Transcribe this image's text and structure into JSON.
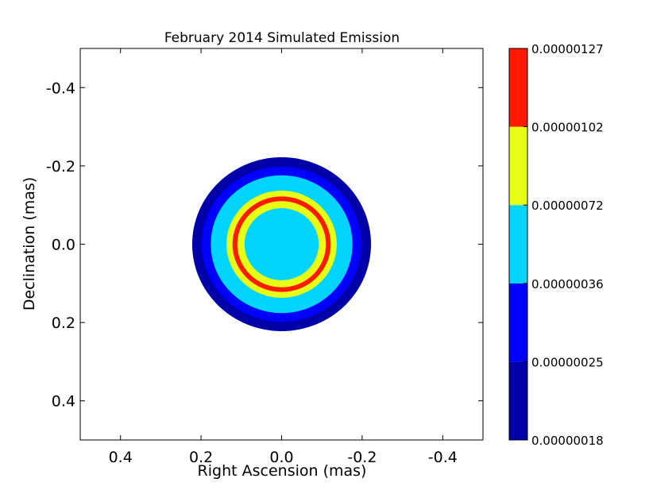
{
  "chart_data": {
    "type": "contour",
    "title": "February 2014 Simulated Emission",
    "xlabel": "Right Ascension (mas)",
    "ylabel": "Declination (mas)",
    "xlim": [
      0.5,
      -0.5
    ],
    "ylim": [
      0.5,
      -0.5
    ],
    "xticks": [
      0.4,
      0.2,
      0.0,
      -0.2,
      -0.4
    ],
    "xtick_labels": [
      "0.4",
      "0.2",
      "0.0",
      "-0.2",
      "-0.4"
    ],
    "yticks": [
      -0.4,
      -0.2,
      0.0,
      0.2,
      0.4
    ],
    "ytick_labels": [
      "-0.4",
      "-0.2",
      "0.0",
      "0.2",
      "0.4"
    ],
    "grid": false,
    "colorbar": {
      "levels": [
        1.8e-07,
        2.5e-07,
        3.6e-07,
        7.2e-07,
        1.02e-06,
        1.27e-06
      ],
      "labels": [
        "0.00000018",
        "0.00000025",
        "0.00000036",
        "0.00000072",
        "0.00000102",
        "0.00000127"
      ],
      "colors": [
        "#0000a8",
        "#0000ff",
        "#00d4ff",
        "#e6ff14",
        "#ff1a00"
      ]
    },
    "emission_rings": [
      {
        "band": "0.00000018-0.00000025",
        "color": "#0000a8",
        "outer_radius_mas": 0.222
      },
      {
        "band": "0.00000025-0.00000036",
        "color": "#0000ff",
        "outer_radius_mas": 0.198
      },
      {
        "band": "0.00000036-0.00000072",
        "color": "#00d4ff",
        "outer_radius_mas": 0.176
      },
      {
        "band": "0.00000072-0.00000102",
        "color": "#e6ff14",
        "outer_radius_mas": 0.137
      },
      {
        "band": "0.00000102-0.00000127",
        "color": "#ff1a00",
        "outer_radius_mas": 0.122
      },
      {
        "band": "0.00000072-0.00000102",
        "color": "#e6ff14",
        "outer_radius_mas": 0.11
      },
      {
        "band": "0.00000036-0.00000072",
        "color": "#00d4ff",
        "outer_radius_mas": 0.092
      }
    ]
  }
}
